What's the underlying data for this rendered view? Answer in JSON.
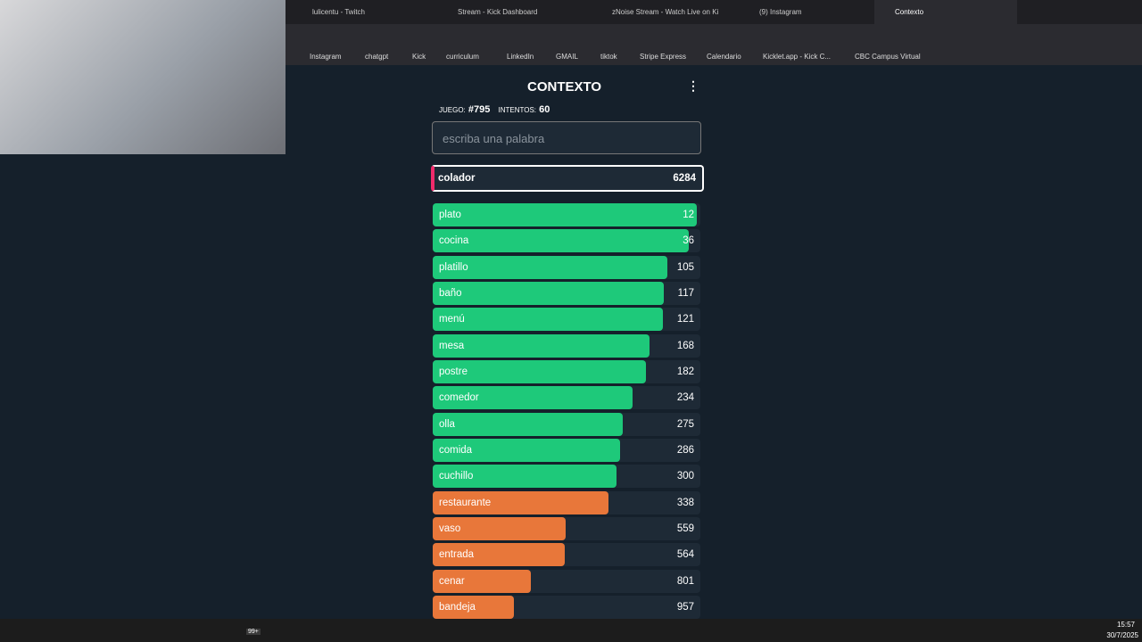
{
  "browser": {
    "tabs": [
      "lulicentu - Twitch",
      "Stream - Kick Dashboard",
      "zNoise Stream - Watch Live on Ki",
      "(9) Instagram",
      "Contexto"
    ],
    "bookmarks": [
      "Instagram",
      "chatgpt",
      "Kick",
      "curriculum",
      "LinkedIn",
      "GMAIL",
      "tiktok",
      "Stripe Express",
      "Calendario",
      "Kicklet.app - Kick C...",
      "CBC Campus Virtual"
    ]
  },
  "game": {
    "title": "CONTEXTO",
    "game_label": "JUEGO:",
    "game_number": "#795",
    "attempts_label": "INTENTOS:",
    "attempts": 60,
    "placeholder": "escriba una palabra",
    "last_guess": {
      "word": "colador",
      "distance": 6284
    },
    "rows": [
      {
        "word": "plato",
        "distance": 12,
        "color": "#1ec97a"
      },
      {
        "word": "cocina",
        "distance": 36,
        "color": "#1ec97a"
      },
      {
        "word": "platillo",
        "distance": 105,
        "color": "#1ec97a"
      },
      {
        "word": "baño",
        "distance": 117,
        "color": "#1ec97a"
      },
      {
        "word": "menú",
        "distance": 121,
        "color": "#1ec97a"
      },
      {
        "word": "mesa",
        "distance": 168,
        "color": "#1ec97a"
      },
      {
        "word": "postre",
        "distance": 182,
        "color": "#1ec97a"
      },
      {
        "word": "comedor",
        "distance": 234,
        "color": "#1ec97a"
      },
      {
        "word": "olla",
        "distance": 275,
        "color": "#1ec97a"
      },
      {
        "word": "comida",
        "distance": 286,
        "color": "#1ec97a"
      },
      {
        "word": "cuchillo",
        "distance": 300,
        "color": "#1ec97a"
      },
      {
        "word": "restaurante",
        "distance": 338,
        "color": "#e8773a"
      },
      {
        "word": "vaso",
        "distance": 559,
        "color": "#e8773a"
      },
      {
        "word": "entrada",
        "distance": 564,
        "color": "#e8773a"
      },
      {
        "word": "cenar",
        "distance": 801,
        "color": "#e8773a"
      },
      {
        "word": "bandeja",
        "distance": 957,
        "color": "#e8773a"
      }
    ]
  },
  "taskbar": {
    "badge": "99+",
    "time": "15:57",
    "date": "30/7/2025"
  }
}
